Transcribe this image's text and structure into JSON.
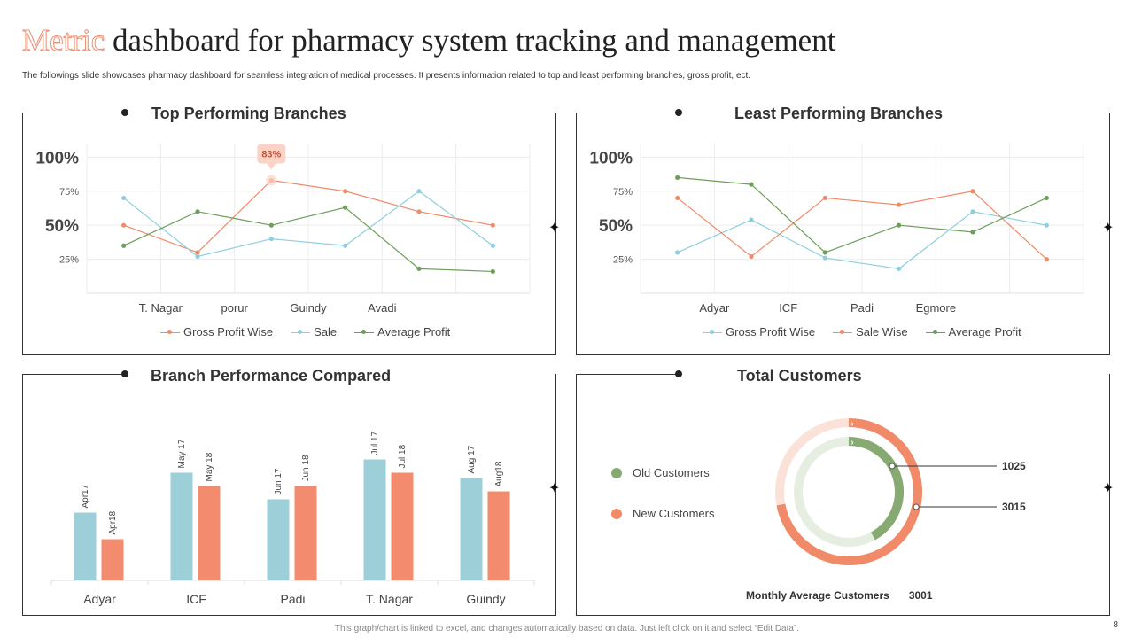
{
  "header": {
    "title_accent": "Metric",
    "title_rest": " dashboard for pharmacy system tracking and management",
    "subtitle": "The followings slide showcases pharmacy dashboard for seamless integration of medical processes. It presents information related to top and least performing branches, gross profit, ect."
  },
  "footer": {
    "note": "This graph/chart is linked to excel, and changes automatically based on data. Just left click on it and select “Edit Data”.",
    "page_number": "8"
  },
  "colors": {
    "orange": "#f08a68",
    "blue": "#8ecfdf",
    "green": "#6e9e5a",
    "bar_blue": "#9ccfd8",
    "bar_orange": "#f38c6e",
    "ring_green": "#86aa72",
    "ring_orange": "#f08a68"
  },
  "chart_data": [
    {
      "id": "top",
      "type": "line",
      "title": "Top Performing Branches",
      "categories": [
        "",
        "T. Nagar",
        "porur",
        "Guindy",
        "Avadi",
        ""
      ],
      "y_tick_labels": [
        "25%",
        "50%",
        "75%",
        "100%"
      ],
      "ylim": [
        0,
        1.1
      ],
      "callout": {
        "series": 0,
        "index": 2,
        "label": "83%"
      },
      "series": [
        {
          "name": "Gross Profit Wise",
          "color": "#f08a68",
          "values": [
            0.5,
            0.3,
            0.83,
            0.75,
            0.6,
            0.5
          ]
        },
        {
          "name": "Sale",
          "color": "#8ecfdf",
          "values": [
            0.7,
            0.27,
            0.4,
            0.35,
            0.75,
            0.35
          ]
        },
        {
          "name": "Average Profit",
          "color": "#6e9e5a",
          "values": [
            0.35,
            0.6,
            0.5,
            0.63,
            0.18,
            0.16
          ]
        }
      ]
    },
    {
      "id": "least",
      "type": "line",
      "title": "Least Performing Branches",
      "categories": [
        "",
        "Adyar",
        "ICF",
        "Padi",
        "Egmore",
        ""
      ],
      "y_tick_labels": [
        "25%",
        "50%",
        "75%",
        "100%"
      ],
      "ylim": [
        0,
        1.1
      ],
      "series": [
        {
          "name": "Gross Profit Wise",
          "color": "#8ecfdf",
          "values": [
            0.3,
            0.54,
            0.26,
            0.18,
            0.6,
            0.5
          ]
        },
        {
          "name": "Sale Wise",
          "color": "#f08a68",
          "values": [
            0.7,
            0.27,
            0.7,
            0.65,
            0.75,
            0.25
          ]
        },
        {
          "name": "Average Profit",
          "color": "#6e9e5a",
          "values": [
            0.85,
            0.8,
            0.3,
            0.5,
            0.45,
            0.7
          ]
        }
      ]
    },
    {
      "id": "compare",
      "type": "bar",
      "title": "Branch Performance Compared",
      "categories": [
        "Adyar",
        "ICF",
        "Padi",
        "T. Nagar",
        "Guindy"
      ],
      "ylim": [
        0,
        12
      ],
      "series": [
        {
          "color": "#9ccfd8",
          "values": [
            5.1,
            8.1,
            6.1,
            9.1,
            7.7
          ],
          "labels": [
            "Apr17",
            "May 17",
            "Jun 17",
            "Jul 17",
            "Aug 17"
          ]
        },
        {
          "color": "#f38c6e",
          "values": [
            3.1,
            7.1,
            7.1,
            8.1,
            6.7
          ],
          "labels": [
            "Apr18",
            "May 18",
            "Jun 18",
            "Jul 18",
            "Aug18"
          ]
        }
      ]
    },
    {
      "id": "customers",
      "type": "pie",
      "title": "Total Customers",
      "series": [
        {
          "name": "Old Customers",
          "value": 1025,
          "ring": "inner",
          "color": "#86aa72",
          "fraction": 0.42
        },
        {
          "name": "New Customers",
          "value": 3015,
          "ring": "outer",
          "color": "#f08a68",
          "fraction": 0.72
        }
      ],
      "monthly_average_label": "Monthly  Average Customers",
      "monthly_average_value": "3001"
    }
  ]
}
